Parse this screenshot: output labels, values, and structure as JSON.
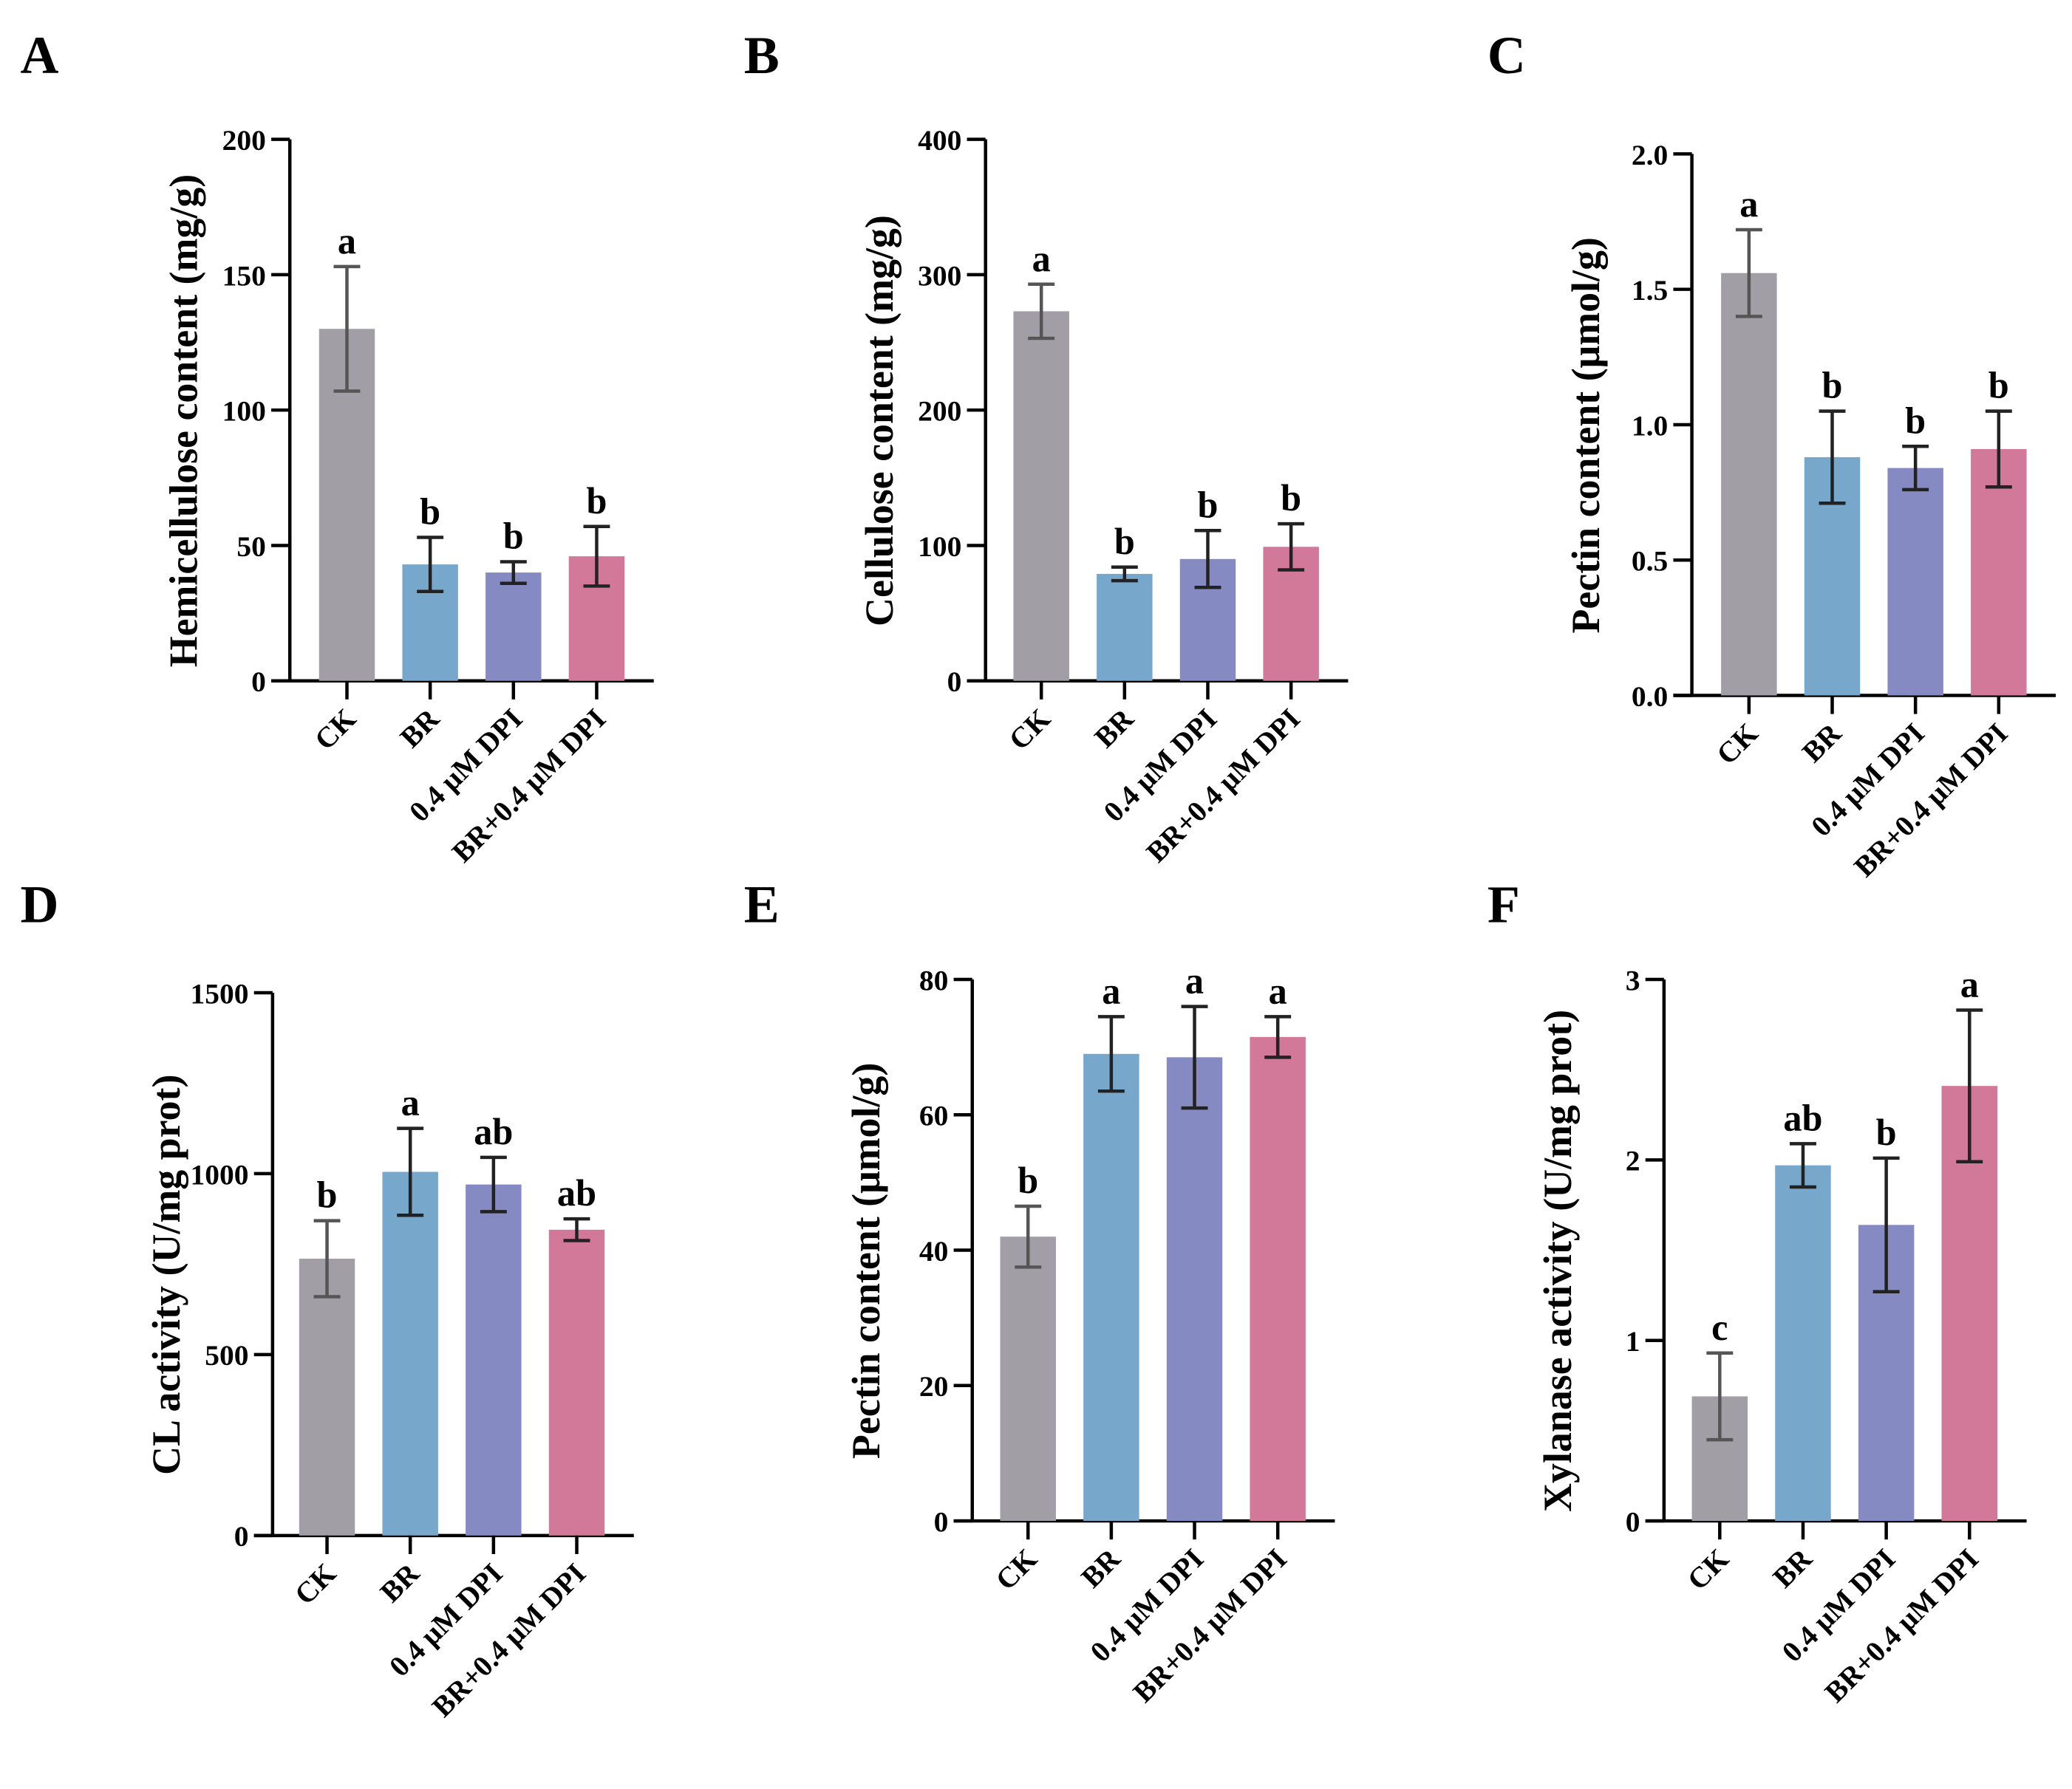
{
  "colors": {
    "CK": "#a19ea6",
    "BR": "#77a7cb",
    "DPI": "#868ac3",
    "BR_DPI": "#d27999",
    "err_CK": "#555555",
    "err": "#222222"
  },
  "chart_data": [
    {
      "panel": "A",
      "type": "bar",
      "ylabel": "Hemicellulose content (mg/g)",
      "ylim": [
        0,
        200
      ],
      "yticks": [
        0,
        50,
        100,
        150,
        200
      ],
      "categories": [
        "CK",
        "BR",
        "0.4 μM DPI",
        "BR+0.4 μM DPI"
      ],
      "values": [
        130,
        43,
        40,
        46
      ],
      "errors": [
        23,
        10,
        4,
        11
      ],
      "letters": [
        "a",
        "b",
        "b",
        "b"
      ]
    },
    {
      "panel": "B",
      "type": "bar",
      "ylabel": "Cellulose content (mg/g)",
      "ylim": [
        0,
        400
      ],
      "yticks": [
        0,
        100,
        200,
        300,
        400
      ],
      "categories": [
        "CK",
        "BR",
        "0.4 μM DPI",
        "BR+0.4 μM DPI"
      ],
      "values": [
        273,
        79,
        90,
        99
      ],
      "errors": [
        20,
        5,
        21,
        17
      ],
      "letters": [
        "a",
        "b",
        "b",
        "b"
      ]
    },
    {
      "panel": "C",
      "type": "bar",
      "ylabel": "Pectin content (μmol/g)",
      "ylim": [
        0,
        2.0
      ],
      "yticks": [
        "0.0",
        "0.5",
        "1.0",
        "1.5",
        "2.0"
      ],
      "categories": [
        "CK",
        "BR",
        "0.4 μM DPI",
        "BR+0.4 μM DPI"
      ],
      "values": [
        1.56,
        0.88,
        0.84,
        0.91
      ],
      "errors": [
        0.16,
        0.17,
        0.08,
        0.14
      ],
      "letters": [
        "a",
        "b",
        "b",
        "b"
      ]
    },
    {
      "panel": "D",
      "type": "bar",
      "ylabel": "CL activity (U/mg prot)",
      "ylim": [
        0,
        1500
      ],
      "yticks": [
        0,
        500,
        1000,
        1500
      ],
      "categories": [
        "CK",
        "BR",
        "0.4 μM DPI",
        "BR+0.4 μM DPI"
      ],
      "values": [
        765,
        1005,
        970,
        845
      ],
      "errors": [
        105,
        120,
        75,
        30
      ],
      "letters": [
        "b",
        "a",
        "ab",
        "ab"
      ]
    },
    {
      "panel": "E",
      "type": "bar",
      "ylabel": "Pectin content (μmol/g)",
      "ylim": [
        0,
        80
      ],
      "yticks": [
        0,
        20,
        40,
        60,
        80
      ],
      "categories": [
        "CK",
        "BR",
        "0.4 μM DPI",
        "BR+0.4 μM DPI"
      ],
      "values": [
        42,
        69,
        68.5,
        71.5
      ],
      "errors": [
        4.5,
        5.5,
        7.5,
        3
      ],
      "letters": [
        "b",
        "a",
        "a",
        "a"
      ]
    },
    {
      "panel": "F",
      "type": "bar",
      "ylabel": "Xylanase activity (U/mg prot)",
      "ylim": [
        0,
        3
      ],
      "yticks": [
        0,
        1,
        2,
        3
      ],
      "categories": [
        "CK",
        "BR",
        "0.4 μM DPI",
        "BR+0.4 μM DPI"
      ],
      "values": [
        0.69,
        1.97,
        1.64,
        2.41
      ],
      "errors": [
        0.24,
        0.12,
        0.37,
        0.42
      ],
      "letters": [
        "c",
        "ab",
        "b",
        "a"
      ]
    }
  ]
}
